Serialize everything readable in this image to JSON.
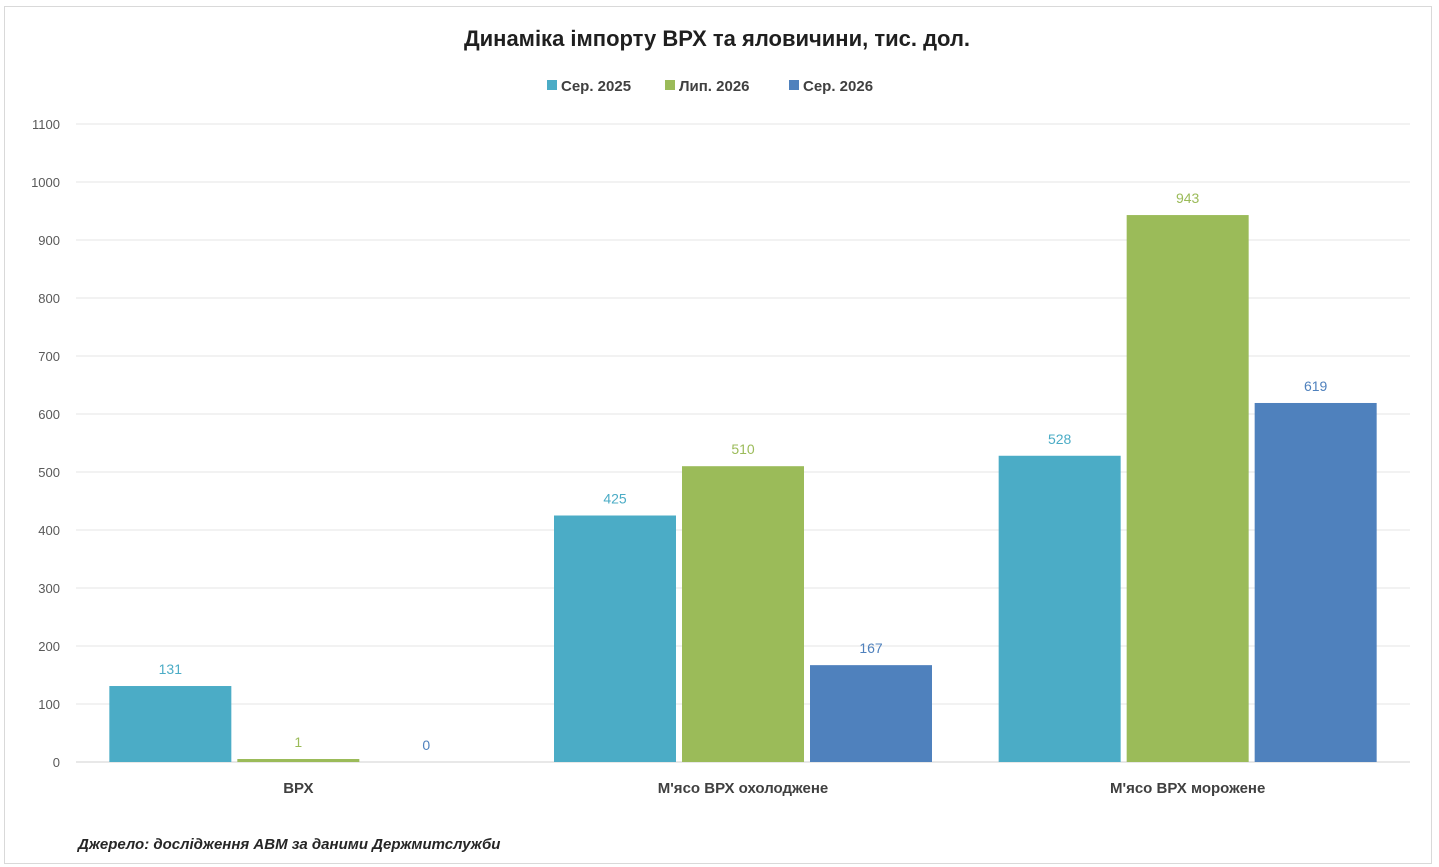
{
  "chart_data": {
    "type": "bar",
    "title": "Динаміка імпорту ВРХ та яловичини, тис. дол.",
    "categories": [
      "ВРХ",
      "М'ясо  ВРХ охолоджене",
      "М'ясо  ВРХ морожене"
    ],
    "series": [
      {
        "name": "Сер. 2025",
        "values": [
          131,
          425,
          528
        ],
        "color": "#4bacc6"
      },
      {
        "name": "Лип. 2026",
        "values": [
          1,
          510,
          943
        ],
        "color": "#9bbb59"
      },
      {
        "name": "Сер. 2026",
        "values": [
          0,
          167,
          619
        ],
        "color": "#4f81bd"
      }
    ],
    "ylim": [
      0,
      1100
    ],
    "yticks": [
      "0",
      "100",
      "200",
      "300",
      "400",
      "500",
      "600",
      "700",
      "800",
      "900",
      "1000",
      "1100"
    ],
    "grid": true,
    "legend_position": "top-center",
    "data_labels": true
  },
  "source_note": "Джерело: дослідження  АВМ  за даними  Держмитслужби"
}
